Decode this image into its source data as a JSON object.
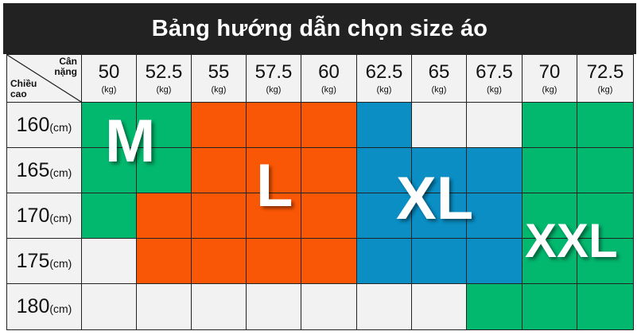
{
  "title": "Bảng hướng dẫn chọn size áo",
  "corner": {
    "top": "Cân\nnặng",
    "bottom": "Chiều\ncao"
  },
  "weights": [
    {
      "value": "50",
      "unit": "(kg)"
    },
    {
      "value": "52.5",
      "unit": "(kg)"
    },
    {
      "value": "55",
      "unit": "(kg)"
    },
    {
      "value": "57.5",
      "unit": "(kg)"
    },
    {
      "value": "60",
      "unit": "(kg)"
    },
    {
      "value": "62.5",
      "unit": "(kg)"
    },
    {
      "value": "65",
      "unit": "(kg)"
    },
    {
      "value": "67.5",
      "unit": "(kg)"
    },
    {
      "value": "70",
      "unit": "(kg)"
    },
    {
      "value": "72.5",
      "unit": "(kg)"
    }
  ],
  "heights": [
    {
      "value": "160",
      "unit": "(cm)"
    },
    {
      "value": "165",
      "unit": "(cm)"
    },
    {
      "value": "170",
      "unit": "(cm)"
    },
    {
      "value": "175",
      "unit": "(cm)"
    },
    {
      "value": "180",
      "unit": "(cm)"
    }
  ],
  "sizes": {
    "m": "M",
    "l": "L",
    "xl": "XL",
    "xxl": "XXL"
  },
  "size_grid": [
    [
      "M",
      "M",
      "L",
      "L",
      "L",
      "XL",
      "",
      "",
      "XXL",
      "XXL"
    ],
    [
      "M",
      "M",
      "L",
      "L",
      "L",
      "XL",
      "XL",
      "XL",
      "XXL",
      "XXL"
    ],
    [
      "M",
      "L",
      "L",
      "L",
      "L",
      "XL",
      "XL",
      "XL",
      "XXL",
      "XXL"
    ],
    [
      "",
      "L",
      "L",
      "L",
      "L",
      "XL",
      "XL",
      "XL",
      "XXL",
      "XXL"
    ],
    [
      "",
      "",
      "",
      "",
      "",
      "",
      "",
      "XXL",
      "XXL",
      "XXL"
    ]
  ],
  "colors": {
    "M": "#02b76e",
    "L": "#f95705",
    "XL": "#0a8ec4",
    "XXL": "#02b76e",
    "empty": "#f2f2f2",
    "title_bg": "#222222"
  }
}
